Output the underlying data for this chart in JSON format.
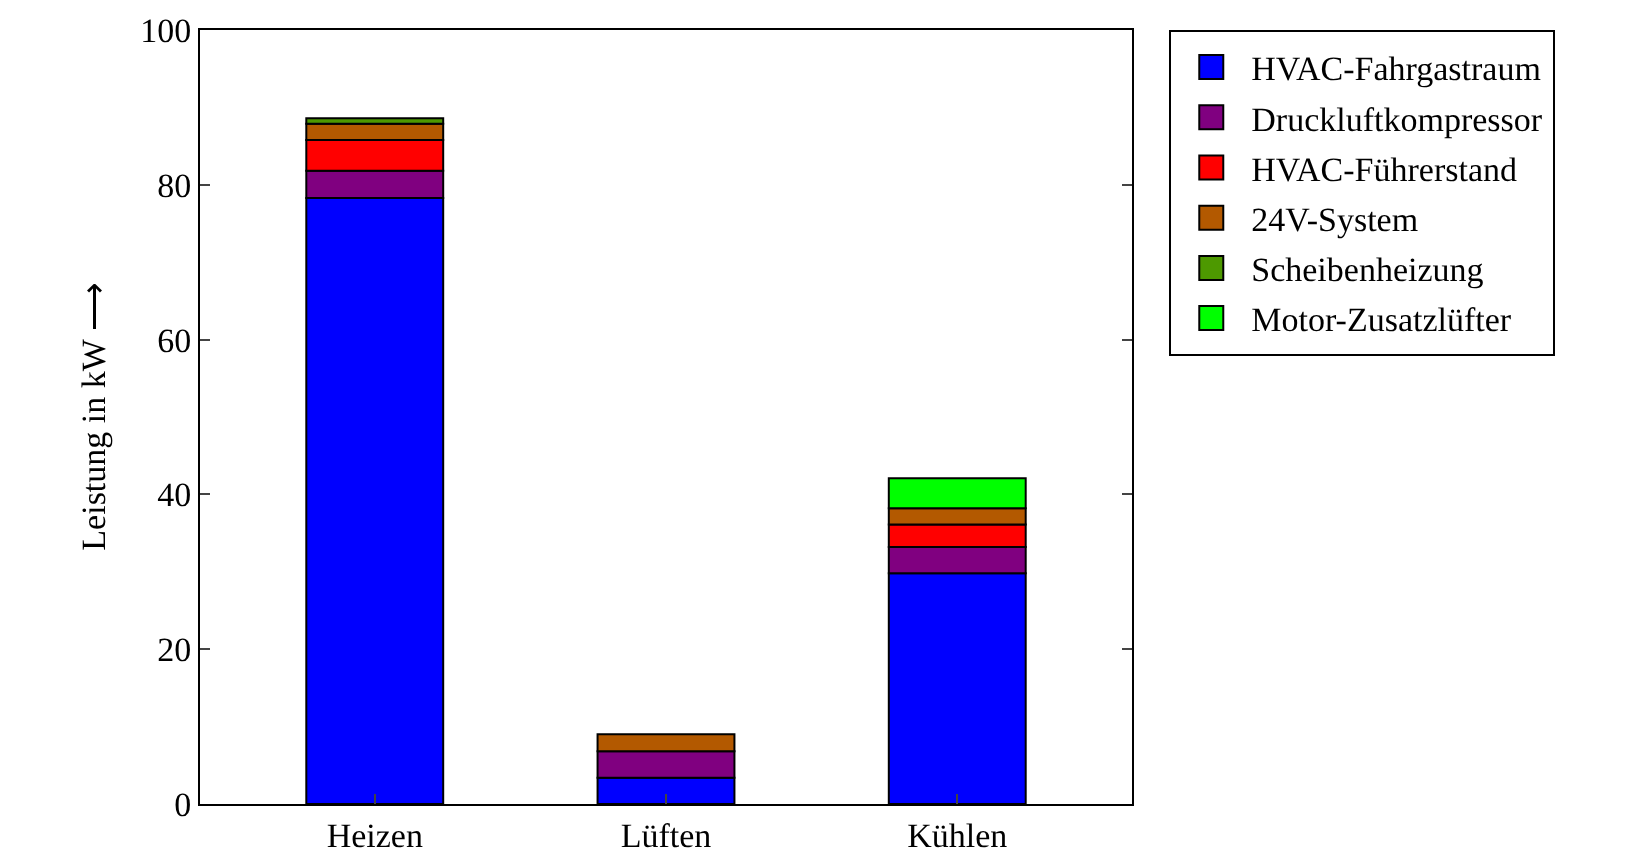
{
  "chart_data": {
    "type": "bar",
    "stacked": true,
    "ylabel": "Leistung in kW ⟶",
    "categories": [
      "Heizen",
      "Lüften",
      "Kühlen"
    ],
    "series": [
      {
        "name": "HVAC-Fahrgastraum",
        "color": "#0000ff",
        "values": [
          78.3,
          3.4,
          29.8
        ]
      },
      {
        "name": "Druckluftkompressor",
        "color": "#800080",
        "values": [
          3.5,
          3.4,
          3.4
        ]
      },
      {
        "name": "HVAC-Führerstand",
        "color": "#ff0000",
        "values": [
          4,
          null,
          2.9
        ]
      },
      {
        "name": "24V-System",
        "color": "#b35900",
        "values": [
          2.1,
          2.2,
          2.1
        ]
      },
      {
        "name": "Scheibenheizung",
        "color": "#4d9900",
        "values": [
          0.7,
          null,
          null
        ]
      },
      {
        "name": "Motor-Zusatzlüfter",
        "color": "#00ff00",
        "values": [
          null,
          null,
          3.9
        ]
      }
    ],
    "ylim": [
      0,
      100
    ],
    "yticks": [
      0,
      20,
      40,
      60,
      80,
      100
    ],
    "grid": false,
    "legend": "top right"
  }
}
